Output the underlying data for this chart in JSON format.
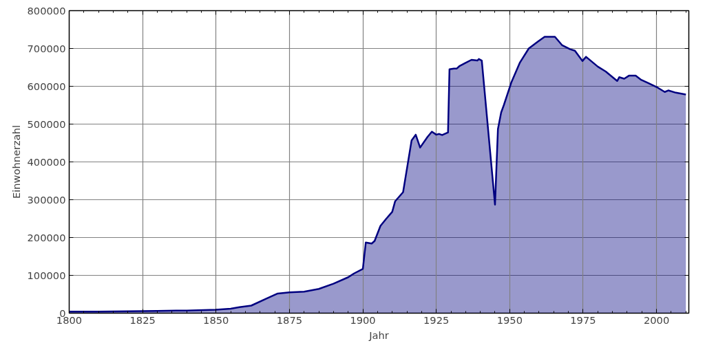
{
  "chart_data": {
    "type": "area",
    "xlabel": "Jahr",
    "ylabel": "Einwohnerzahl",
    "x": [
      1800,
      1810,
      1820,
      1830,
      1840,
      1850,
      1855,
      1858,
      1862,
      1867,
      1871,
      1875,
      1880,
      1885,
      1890,
      1895,
      1897,
      1900,
      1901,
      1903,
      1904,
      1906,
      1908,
      1910,
      1911,
      1913.7,
      1916.6,
      1918,
      1919.5,
      1922,
      1923.5,
      1925,
      1926,
      1927,
      1929,
      1929.5,
      1931,
      1932,
      1933,
      1935,
      1937,
      1939,
      1939.5,
      1940.5,
      1945,
      1946,
      1947.1,
      1948,
      1950.6,
      1953.5,
      1956.5,
      1959.6,
      1961.9,
      1965.4,
      1967.8,
      1970.6,
      1972.2,
      1974.8,
      1976,
      1980,
      1982.7,
      1986.6,
      1987.3,
      1989,
      1990.6,
      1992.9,
      1994.8,
      1997.1,
      2000.5,
      2002.8,
      2004,
      2006.6,
      2010
    ],
    "series": [
      {
        "color": "#000080",
        "values": [
          4000,
          4000,
          5000,
          6000,
          7000,
          9000,
          12000,
          16000,
          20000,
          38000,
          52000,
          55000,
          57000,
          64000,
          78000,
          95000,
          105000,
          117000,
          187000,
          184000,
          191000,
          231000,
          250000,
          268000,
          296000,
          320000,
          457000,
          472000,
          438000,
          466000,
          480000,
          472000,
          474000,
          471000,
          478000,
          645000,
          647000,
          647000,
          654000,
          662000,
          670000,
          668000,
          672000,
          668000,
          287000,
          487000,
          531000,
          550000,
          611000,
          663000,
          700000,
          718000,
          731000,
          731000,
          709000,
          698000,
          694000,
          667000,
          678000,
          652000,
          639000,
          614000,
          624000,
          620000,
          628000,
          628000,
          617000,
          609000,
          596000,
          585000,
          589000,
          583000,
          578000
        ]
      }
    ],
    "xlim": [
      1800,
      2011
    ],
    "ylim": [
      0,
      800000
    ],
    "xticks": [
      1800,
      1825,
      1850,
      1875,
      1900,
      1925,
      1950,
      1975,
      2000
    ],
    "yticks": [
      0,
      100000,
      200000,
      300000,
      400000,
      500000,
      600000,
      700000,
      800000
    ],
    "grid": true
  }
}
